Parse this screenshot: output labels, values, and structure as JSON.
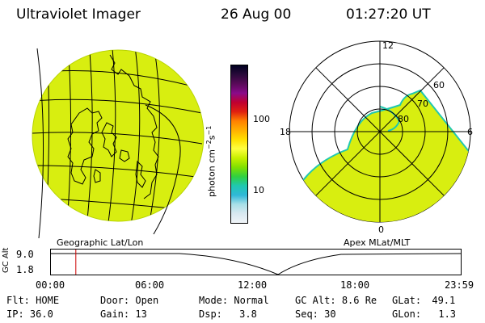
{
  "header": {
    "title": "Ultraviolet Imager",
    "date": "26 Aug 00",
    "time": "01:27:20 UT"
  },
  "colorbar": {
    "label_unit": "photon cm",
    "label_exp1": "−2",
    "label_s": "s",
    "label_exp2": "−1",
    "tick_high": "100",
    "tick_low": "10",
    "colors": [
      "#000020",
      "#2a0a3a",
      "#5a0a5a",
      "#8a0a8a",
      "#c00030",
      "#e02010",
      "#ff8000",
      "#ffb000",
      "#ffe000",
      "#ffff40",
      "#c8f000",
      "#80e000",
      "#30d040",
      "#20c8b0",
      "#30b8d8",
      "#a8e0e8",
      "#d8e8f0",
      "#f0f4f8"
    ]
  },
  "polar": {
    "mlt_top": "12",
    "mlt_left": "18",
    "mlt_right": "6",
    "mlt_bottom": "0",
    "lat_60": "60",
    "lat_70": "70",
    "lat_80": "80"
  },
  "panel_labels": {
    "left": "Geographic Lat/Lon",
    "right": "Apex MLat/MLT"
  },
  "altitude_plot": {
    "axis_label": "GC Alt",
    "y_top": "9.0",
    "y_bottom": "1.8",
    "x_ticks": [
      "00:00",
      "06:00",
      "12:00",
      "18:00",
      "23:59"
    ],
    "marker_time_hours": 1.46,
    "marker_color": "#cc0000"
  },
  "status": {
    "flt_label": "Flt:",
    "flt_value": "HOME",
    "ip_label": "IP:",
    "ip_value": "36.0",
    "door_label": "Door:",
    "door_value": "Open",
    "gain_label": "Gain:",
    "gain_value": "13",
    "mode_label": "Mode:",
    "mode_value": "Normal",
    "dsp_label": "Dsp:",
    "dsp_value": "3.8",
    "gcalt_label": "GC Alt:",
    "gcalt_value": "8.6 Re",
    "seq_label": "Seq:",
    "seq_value": "30",
    "glat_label": "GLat:",
    "glat_value": "49.1",
    "glon_label": "GLon:",
    "glon_value": "1.3"
  }
}
